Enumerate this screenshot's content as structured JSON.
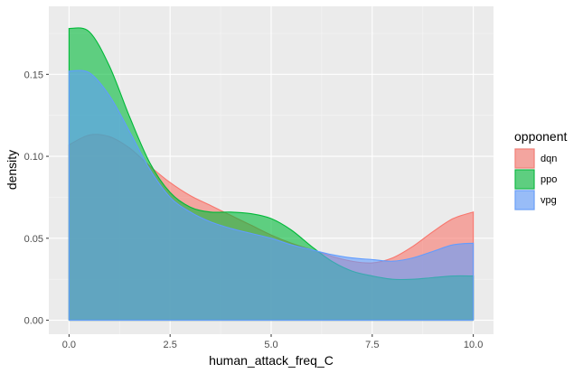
{
  "chart_data": {
    "type": "area",
    "xlabel": "human_attack_freq_C",
    "ylabel": "density",
    "xlim": [
      0,
      10
    ],
    "ylim": [
      0,
      0.18
    ],
    "x_ticks": [
      0.0,
      2.5,
      5.0,
      7.5,
      10.0
    ],
    "x_tick_labels": [
      "0.0",
      "2.5",
      "5.0",
      "7.5",
      "10.0"
    ],
    "y_ticks": [
      0.0,
      0.05,
      0.1,
      0.15
    ],
    "y_tick_labels": [
      "0.00",
      "0.05",
      "0.10",
      "0.15"
    ],
    "grid": true,
    "legend": {
      "title": "opponent",
      "position": "right"
    },
    "x": [
      0,
      0.5,
      1,
      1.5,
      2,
      2.5,
      3,
      3.5,
      4,
      4.5,
      5,
      5.5,
      6,
      6.5,
      7,
      7.5,
      8,
      8.5,
      9,
      9.5,
      10
    ],
    "series": [
      {
        "name": "dqn",
        "color": "#F8766D",
        "values": [
          0.107,
          0.113,
          0.112,
          0.105,
          0.094,
          0.084,
          0.076,
          0.07,
          0.064,
          0.058,
          0.052,
          0.047,
          0.043,
          0.039,
          0.036,
          0.035,
          0.038,
          0.045,
          0.054,
          0.062,
          0.066
        ]
      },
      {
        "name": "ppo",
        "color": "#00BA38",
        "values": [
          0.178,
          0.176,
          0.155,
          0.124,
          0.096,
          0.078,
          0.069,
          0.066,
          0.066,
          0.065,
          0.062,
          0.055,
          0.045,
          0.036,
          0.03,
          0.027,
          0.025,
          0.025,
          0.026,
          0.027,
          0.027
        ]
      },
      {
        "name": "vpg",
        "color": "#619CFF",
        "values": [
          0.152,
          0.151,
          0.137,
          0.115,
          0.092,
          0.075,
          0.066,
          0.06,
          0.056,
          0.053,
          0.05,
          0.046,
          0.043,
          0.04,
          0.038,
          0.037,
          0.036,
          0.038,
          0.042,
          0.046,
          0.047
        ]
      }
    ]
  }
}
